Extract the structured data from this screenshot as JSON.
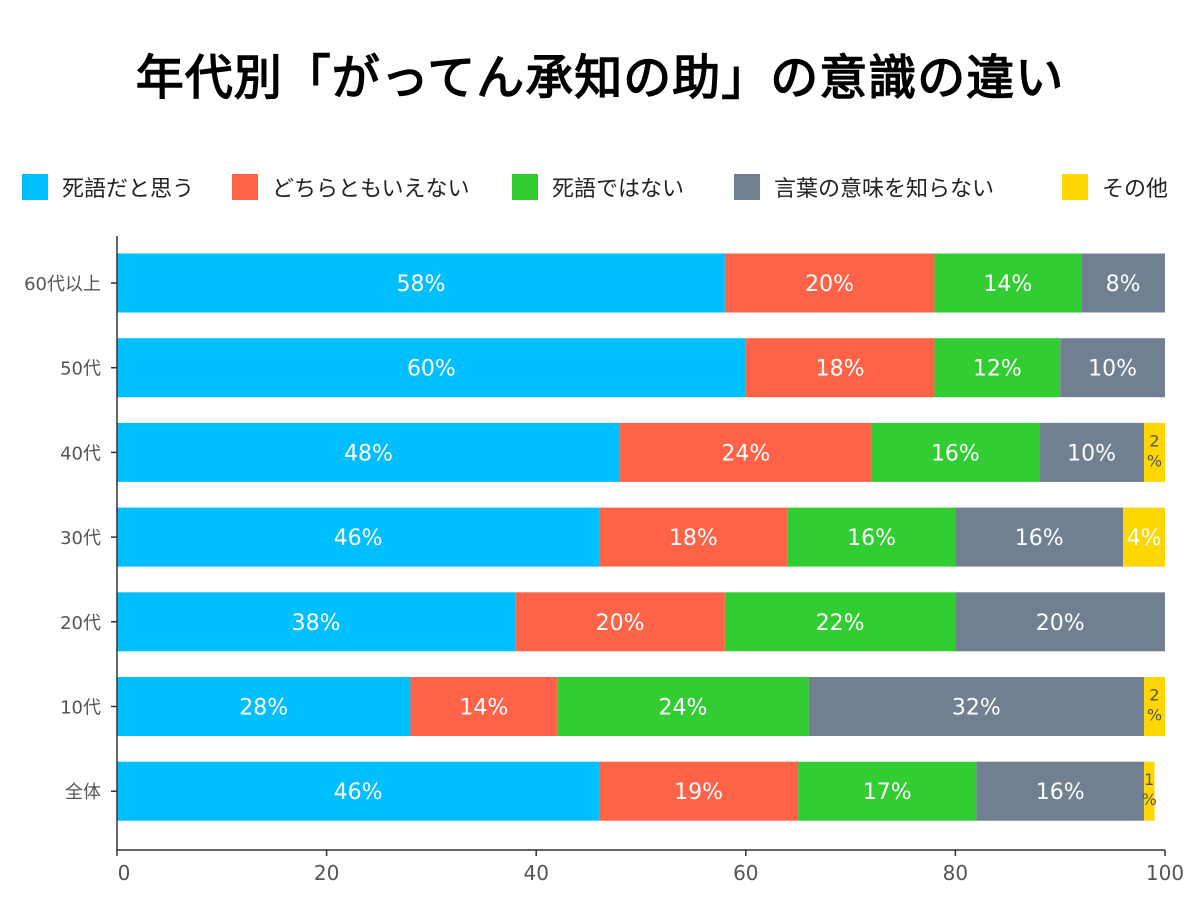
{
  "title": "年代別「がってん承知の助」の意識の違い",
  "chart_data": {
    "type": "bar",
    "orientation": "horizontal",
    "stacked": true,
    "categories": [
      "60代以上",
      "50代",
      "40代",
      "30代",
      "20代",
      "10代",
      "全体"
    ],
    "series": [
      {
        "name": "死語だと思う",
        "color": "#00BFFF",
        "values": [
          58,
          60,
          48,
          46,
          38,
          28,
          46
        ]
      },
      {
        "name": "どちらともいえない",
        "color": "#FF6347",
        "values": [
          20,
          18,
          24,
          18,
          20,
          14,
          19
        ]
      },
      {
        "name": "死語ではない",
        "color": "#32CD32",
        "values": [
          14,
          12,
          16,
          16,
          22,
          24,
          17
        ]
      },
      {
        "name": "言葉の意味を知らない",
        "color": "#708090",
        "values": [
          8,
          10,
          10,
          16,
          20,
          32,
          16
        ]
      },
      {
        "name": "その他",
        "color": "#FFD700",
        "values": [
          0,
          0,
          2,
          4,
          0,
          2,
          1
        ]
      }
    ],
    "xlim": [
      0,
      100
    ],
    "xticks": [
      0,
      20,
      40,
      60,
      80,
      100
    ],
    "label_suffix": "%",
    "legend_position": "top",
    "grid": false
  }
}
